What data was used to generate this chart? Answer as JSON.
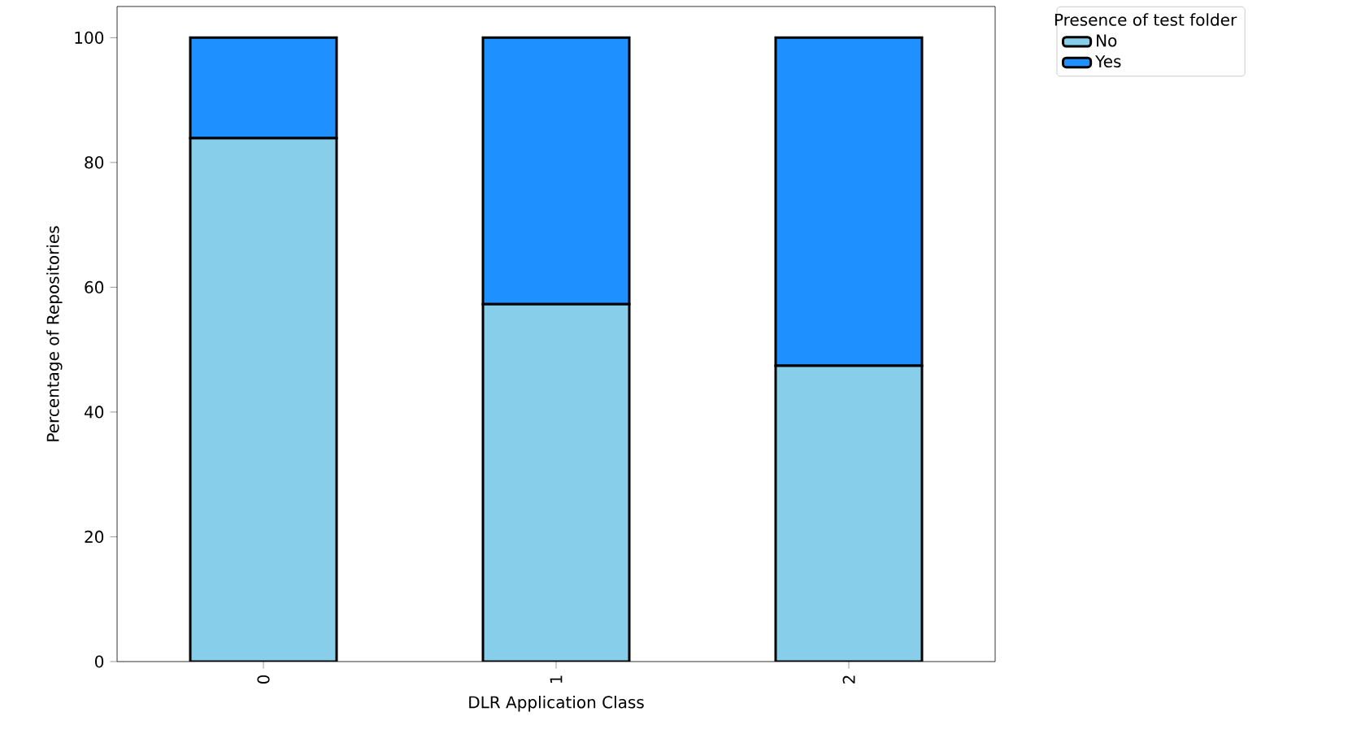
{
  "chart_data": {
    "type": "bar",
    "stacked": true,
    "xlabel": "DLR Application Class",
    "ylabel": "Percentage of Repositories",
    "legend_title": "Presence of test folder",
    "legend": "right",
    "categories": [
      "0",
      "1",
      "2"
    ],
    "series": [
      {
        "name": "No",
        "color": "#87ceeb",
        "values": [
          83.9,
          57.3,
          47.4
        ]
      },
      {
        "name": "Yes",
        "color": "#1e90ff",
        "values": [
          16.1,
          42.7,
          52.6
        ]
      }
    ],
    "ylim": [
      0,
      105
    ],
    "yticks": [
      0,
      20,
      40,
      60,
      80,
      100
    ]
  }
}
